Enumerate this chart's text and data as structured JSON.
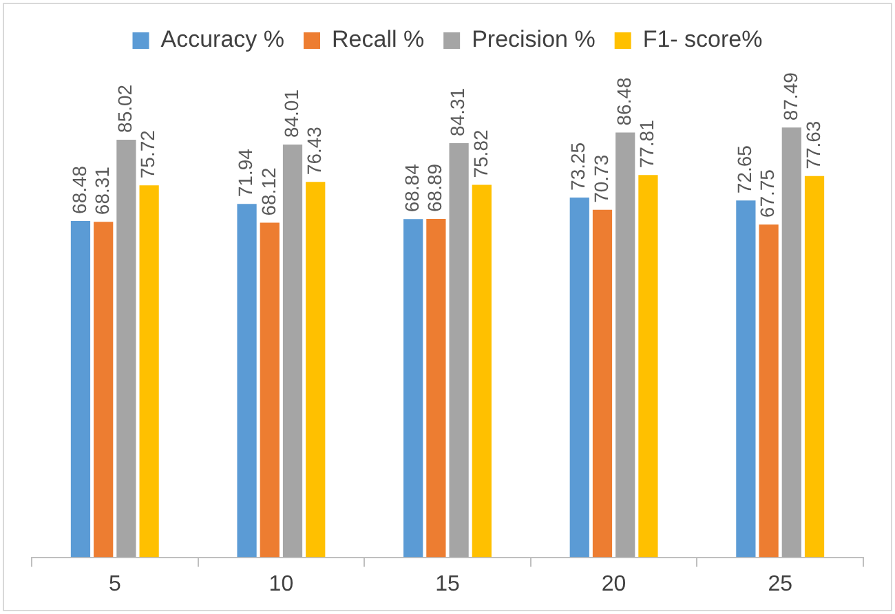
{
  "chart_data": {
    "type": "bar",
    "categories": [
      "5",
      "10",
      "15",
      "20",
      "25"
    ],
    "series": [
      {
        "name": "Accuracy %",
        "color": "#5b9bd5",
        "values": [
          68.48,
          71.94,
          68.84,
          73.25,
          72.65
        ]
      },
      {
        "name": "Recall %",
        "color": "#ed7d31",
        "values": [
          68.31,
          68.12,
          68.89,
          70.73,
          67.75
        ]
      },
      {
        "name": "Precision %",
        "color": "#a5a5a5",
        "values": [
          85.02,
          84.01,
          84.31,
          86.48,
          87.49
        ]
      },
      {
        "name": "F1- score%",
        "color": "#ffc000",
        "values": [
          75.72,
          76.43,
          75.82,
          77.81,
          77.63
        ]
      }
    ],
    "tick_labels": "x",
    "grid": false,
    "legend": "top",
    "data_labels": true
  }
}
